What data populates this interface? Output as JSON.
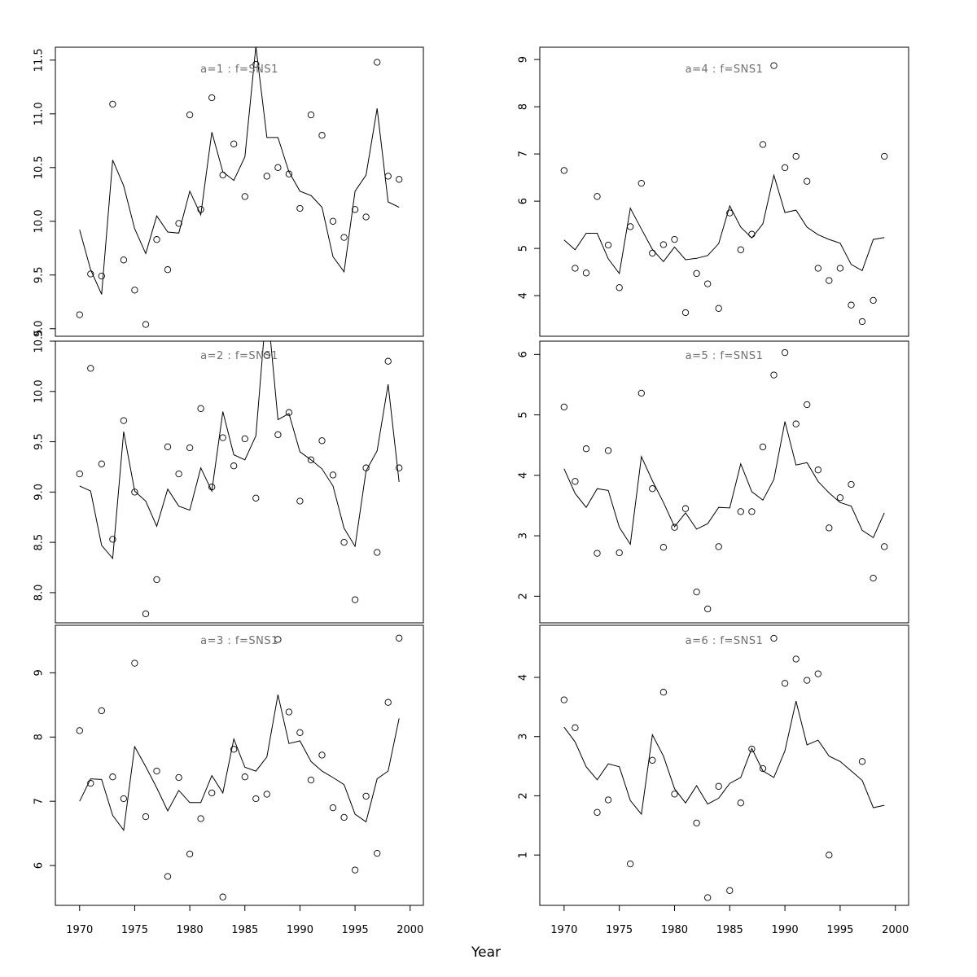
{
  "figure": {
    "xlabel": "Year",
    "background": "#ffffff",
    "colors": {
      "line": "#000000",
      "point": "#000000",
      "title": "#6f6f6f",
      "axis": "#000000",
      "tick_label": "#000000"
    }
  },
  "chart_data": {
    "type": "scatter",
    "note": "6 panels; open-circle observations plus thin fitted line per panel",
    "x": {
      "lim": [
        1967.8,
        2001.2
      ],
      "ticks": [
        1970,
        1975,
        1980,
        1985,
        1990,
        1995,
        2000
      ]
    },
    "xlabel": "Year",
    "years": [
      1970,
      1971,
      1972,
      1973,
      1974,
      1975,
      1976,
      1977,
      1978,
      1979,
      1980,
      1981,
      1982,
      1983,
      1984,
      1985,
      1986,
      1987,
      1988,
      1989,
      1990,
      1991,
      1992,
      1993,
      1994,
      1995,
      1996,
      1997,
      1998,
      1999
    ],
    "panels": [
      {
        "id": "a1",
        "title": "a=1 : f=SNS1",
        "row": 0,
        "col": 0,
        "ylim": [
          8.93,
          11.62
        ],
        "yticks": [
          {
            "v": 9.0,
            "label": "9.0"
          },
          {
            "v": 9.5,
            "label": "9.5"
          },
          {
            "v": 10.0,
            "label": "10.0"
          },
          {
            "v": 10.5,
            "label": "10.5"
          },
          {
            "v": 11.0,
            "label": "11.0"
          },
          {
            "v": 11.5,
            "label": "11.5"
          }
        ],
        "line": [
          9.92,
          9.55,
          9.32,
          10.57,
          10.33,
          9.93,
          9.7,
          10.05,
          9.9,
          9.89,
          10.28,
          10.06,
          10.83,
          10.46,
          10.38,
          10.6,
          11.63,
          10.78,
          10.78,
          10.46,
          10.28,
          10.24,
          10.13,
          9.67,
          9.53,
          10.28,
          10.43,
          11.05,
          10.18,
          10.13
        ],
        "points": [
          [
            1970,
            9.13
          ],
          [
            1971,
            9.51
          ],
          [
            1972,
            9.49
          ],
          [
            1973,
            11.09
          ],
          [
            1974,
            9.64
          ],
          [
            1975,
            9.36
          ],
          [
            1976,
            9.04
          ],
          [
            1977,
            9.83
          ],
          [
            1978,
            9.55
          ],
          [
            1979,
            9.98
          ],
          [
            1980,
            10.99
          ],
          [
            1981,
            10.11
          ],
          [
            1982,
            11.15
          ],
          [
            1983,
            10.43
          ],
          [
            1984,
            10.72
          ],
          [
            1985,
            10.23
          ],
          [
            1986,
            11.46
          ],
          [
            1987,
            10.42
          ],
          [
            1988,
            10.5
          ],
          [
            1989,
            10.44
          ],
          [
            1990,
            10.12
          ],
          [
            1991,
            10.99
          ],
          [
            1992,
            10.8
          ],
          [
            1993,
            10.0
          ],
          [
            1994,
            9.85
          ],
          [
            1995,
            10.11
          ],
          [
            1996,
            10.04
          ],
          [
            1997,
            11.48
          ],
          [
            1998,
            10.42
          ],
          [
            1999,
            10.39
          ]
        ]
      },
      {
        "id": "a2",
        "title": "a=2 : f=SNS1",
        "row": 1,
        "col": 0,
        "ylim": [
          7.7,
          10.5
        ],
        "yticks": [
          {
            "v": 8.0,
            "label": "8.0"
          },
          {
            "v": 8.5,
            "label": "8.5"
          },
          {
            "v": 9.0,
            "label": "9.0"
          },
          {
            "v": 9.5,
            "label": "9.5"
          },
          {
            "v": 10.0,
            "label": "10.0"
          },
          {
            "v": 10.5,
            "label": "10.5"
          }
        ],
        "line": [
          9.06,
          9.01,
          8.47,
          8.34,
          9.6,
          9.01,
          8.91,
          8.66,
          9.03,
          8.86,
          8.82,
          9.24,
          9.01,
          9.8,
          9.37,
          9.32,
          9.56,
          10.9,
          9.72,
          9.78,
          9.4,
          9.32,
          9.23,
          9.06,
          8.64,
          8.46,
          9.21,
          9.41,
          10.07,
          9.1
        ],
        "points": [
          [
            1970,
            9.18
          ],
          [
            1971,
            10.23
          ],
          [
            1972,
            9.28
          ],
          [
            1973,
            8.53
          ],
          [
            1974,
            9.71
          ],
          [
            1975,
            9.0
          ],
          [
            1976,
            7.79
          ],
          [
            1977,
            8.13
          ],
          [
            1978,
            9.45
          ],
          [
            1979,
            9.18
          ],
          [
            1980,
            9.44
          ],
          [
            1981,
            9.83
          ],
          [
            1982,
            9.05
          ],
          [
            1983,
            9.54
          ],
          [
            1984,
            9.26
          ],
          [
            1985,
            9.53
          ],
          [
            1986,
            8.94
          ],
          [
            1987,
            10.36
          ],
          [
            1988,
            9.57
          ],
          [
            1989,
            9.79
          ],
          [
            1990,
            8.91
          ],
          [
            1991,
            9.32
          ],
          [
            1992,
            9.51
          ],
          [
            1993,
            9.17
          ],
          [
            1994,
            8.5
          ],
          [
            1995,
            7.93
          ],
          [
            1996,
            9.24
          ],
          [
            1997,
            8.4
          ],
          [
            1998,
            10.3
          ],
          [
            1999,
            9.24
          ]
        ]
      },
      {
        "id": "a3",
        "title": "a=3 : f=SNS1",
        "row": 2,
        "col": 0,
        "ylim": [
          5.38,
          9.74
        ],
        "yticks": [
          {
            "v": 6,
            "label": "6"
          },
          {
            "v": 7,
            "label": "7"
          },
          {
            "v": 8,
            "label": "8"
          },
          {
            "v": 9,
            "label": "9"
          }
        ],
        "line": [
          7.0,
          7.35,
          7.34,
          6.78,
          6.55,
          7.85,
          7.54,
          7.21,
          6.85,
          7.17,
          6.98,
          6.98,
          7.4,
          7.13,
          7.97,
          7.53,
          7.47,
          7.69,
          8.66,
          7.9,
          7.94,
          7.62,
          7.47,
          7.37,
          7.26,
          6.8,
          6.68,
          7.35,
          7.47,
          8.29
        ],
        "points": [
          [
            1970,
            8.1
          ],
          [
            1971,
            7.28
          ],
          [
            1972,
            8.41
          ],
          [
            1973,
            7.38
          ],
          [
            1974,
            7.04
          ],
          [
            1975,
            9.15
          ],
          [
            1976,
            6.76
          ],
          [
            1977,
            7.47
          ],
          [
            1978,
            5.83
          ],
          [
            1979,
            7.37
          ],
          [
            1980,
            6.18
          ],
          [
            1981,
            6.73
          ],
          [
            1982,
            7.13
          ],
          [
            1983,
            5.51
          ],
          [
            1984,
            7.81
          ],
          [
            1985,
            7.38
          ],
          [
            1986,
            7.04
          ],
          [
            1987,
            7.11
          ],
          [
            1988,
            9.52
          ],
          [
            1989,
            8.39
          ],
          [
            1990,
            8.07
          ],
          [
            1991,
            7.33
          ],
          [
            1992,
            7.72
          ],
          [
            1993,
            6.9
          ],
          [
            1994,
            6.75
          ],
          [
            1995,
            5.93
          ],
          [
            1996,
            7.08
          ],
          [
            1997,
            6.19
          ],
          [
            1998,
            8.54
          ],
          [
            1999,
            9.54
          ]
        ]
      },
      {
        "id": "a4",
        "title": "a=4 : f=SNS1",
        "row": 0,
        "col": 1,
        "ylim": [
          3.14,
          9.26
        ],
        "yticks": [
          {
            "v": 4,
            "label": "4"
          },
          {
            "v": 5,
            "label": "5"
          },
          {
            "v": 6,
            "label": "6"
          },
          {
            "v": 7,
            "label": "7"
          },
          {
            "v": 8,
            "label": "8"
          },
          {
            "v": 9,
            "label": "9"
          }
        ],
        "line": [
          5.18,
          4.97,
          5.32,
          5.32,
          4.78,
          4.47,
          5.85,
          5.41,
          4.98,
          4.72,
          5.03,
          4.76,
          4.79,
          4.85,
          5.1,
          5.9,
          5.45,
          5.22,
          5.52,
          6.55,
          5.76,
          5.81,
          5.45,
          5.29,
          5.19,
          5.11,
          4.66,
          4.53,
          5.19,
          5.23
        ],
        "points": [
          [
            1970,
            6.65
          ],
          [
            1971,
            4.58
          ],
          [
            1972,
            4.48
          ],
          [
            1973,
            6.1
          ],
          [
            1974,
            5.07
          ],
          [
            1975,
            4.17
          ],
          [
            1976,
            5.46
          ],
          [
            1977,
            6.38
          ],
          [
            1978,
            4.9
          ],
          [
            1979,
            5.08
          ],
          [
            1980,
            5.19
          ],
          [
            1981,
            3.64
          ],
          [
            1982,
            4.47
          ],
          [
            1983,
            4.25
          ],
          [
            1984,
            3.73
          ],
          [
            1985,
            5.75
          ],
          [
            1986,
            4.97
          ],
          [
            1987,
            5.3
          ],
          [
            1988,
            7.2
          ],
          [
            1989,
            8.87
          ],
          [
            1990,
            6.71
          ],
          [
            1991,
            6.95
          ],
          [
            1992,
            6.42
          ],
          [
            1993,
            4.58
          ],
          [
            1994,
            4.32
          ],
          [
            1995,
            4.58
          ],
          [
            1996,
            3.8
          ],
          [
            1997,
            3.45
          ],
          [
            1998,
            3.9
          ],
          [
            1999,
            6.95
          ]
        ]
      },
      {
        "id": "a5",
        "title": "a=5 : f=SNS1",
        "row": 1,
        "col": 1,
        "ylim": [
          1.56,
          6.22
        ],
        "yticks": [
          {
            "v": 2,
            "label": "2"
          },
          {
            "v": 3,
            "label": "3"
          },
          {
            "v": 4,
            "label": "4"
          },
          {
            "v": 5,
            "label": "5"
          },
          {
            "v": 6,
            "label": "6"
          }
        ],
        "line": [
          4.11,
          3.7,
          3.47,
          3.78,
          3.75,
          3.14,
          2.86,
          4.31,
          3.91,
          3.55,
          3.15,
          3.38,
          3.11,
          3.2,
          3.47,
          3.46,
          4.19,
          3.73,
          3.59,
          3.93,
          4.89,
          4.17,
          4.21,
          3.9,
          3.71,
          3.55,
          3.49,
          3.09,
          2.97,
          3.38
        ],
        "points": [
          [
            1970,
            5.13
          ],
          [
            1971,
            3.9
          ],
          [
            1972,
            4.44
          ],
          [
            1973,
            2.71
          ],
          [
            1974,
            4.41
          ],
          [
            1975,
            2.72
          ],
          [
            1977,
            5.36
          ],
          [
            1978,
            3.78
          ],
          [
            1979,
            2.81
          ],
          [
            1980,
            3.14
          ],
          [
            1981,
            3.45
          ],
          [
            1982,
            2.07
          ],
          [
            1983,
            1.79
          ],
          [
            1984,
            2.82
          ],
          [
            1986,
            3.4
          ],
          [
            1987,
            3.4
          ],
          [
            1988,
            4.47
          ],
          [
            1989,
            5.66
          ],
          [
            1990,
            6.03
          ],
          [
            1991,
            4.85
          ],
          [
            1992,
            5.17
          ],
          [
            1993,
            4.09
          ],
          [
            1994,
            3.13
          ],
          [
            1995,
            3.63
          ],
          [
            1996,
            3.85
          ],
          [
            1998,
            2.3
          ],
          [
            1999,
            2.82
          ]
        ]
      },
      {
        "id": "a6",
        "title": "a=6 : f=SNS1",
        "row": 2,
        "col": 1,
        "ylim": [
          0.15,
          4.88
        ],
        "yticks": [
          {
            "v": 1,
            "label": "1"
          },
          {
            "v": 2,
            "label": "2"
          },
          {
            "v": 3,
            "label": "3"
          },
          {
            "v": 4,
            "label": "4"
          }
        ],
        "line": [
          3.16,
          2.91,
          2.49,
          2.27,
          2.54,
          2.49,
          1.92,
          1.69,
          3.03,
          2.67,
          2.12,
          1.88,
          2.17,
          1.86,
          1.96,
          2.21,
          2.31,
          2.8,
          2.42,
          2.31,
          2.76,
          3.6,
          2.86,
          2.94,
          2.67,
          2.58,
          2.42,
          2.26,
          1.8,
          1.84
        ],
        "points": [
          [
            1970,
            3.62
          ],
          [
            1971,
            3.15
          ],
          [
            1973,
            1.72
          ],
          [
            1974,
            1.93
          ],
          [
            1976,
            0.85
          ],
          [
            1978,
            2.6
          ],
          [
            1979,
            3.75
          ],
          [
            1980,
            2.03
          ],
          [
            1982,
            1.54
          ],
          [
            1983,
            0.28
          ],
          [
            1984,
            2.16
          ],
          [
            1985,
            0.4
          ],
          [
            1986,
            1.88
          ],
          [
            1987,
            2.79
          ],
          [
            1988,
            2.46
          ],
          [
            1989,
            4.66
          ],
          [
            1990,
            3.9
          ],
          [
            1991,
            4.31
          ],
          [
            1992,
            3.95
          ],
          [
            1993,
            4.06
          ],
          [
            1994,
            1.0
          ],
          [
            1997,
            2.58
          ]
        ]
      }
    ]
  }
}
